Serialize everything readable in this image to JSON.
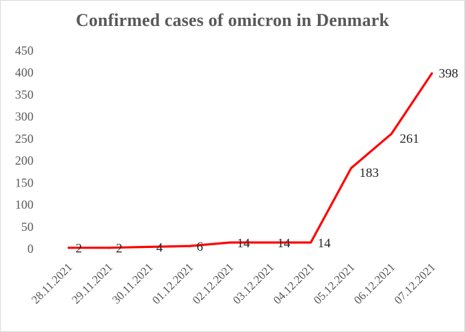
{
  "chart_data": {
    "type": "line",
    "title": "Confirmed cases of  omicron in Denmark",
    "xlabel": "",
    "ylabel": "",
    "categories": [
      "28.11.2021",
      "29.11.2021",
      "30.11.2021",
      "01.12.2021",
      "02.12.2021",
      "03.12.2021",
      "04.12.2021",
      "05.12.2021",
      "06.12.2021",
      "07.12.2021"
    ],
    "series": [
      {
        "values": [
          2,
          2,
          4,
          6,
          14,
          14,
          14,
          183,
          261,
          398
        ]
      }
    ],
    "ylim": [
      0,
      450
    ],
    "yticks": [
      0,
      50,
      100,
      150,
      200,
      250,
      300,
      350,
      400,
      450
    ],
    "grid": false,
    "legend": "none",
    "line_color": "#ff0000"
  }
}
